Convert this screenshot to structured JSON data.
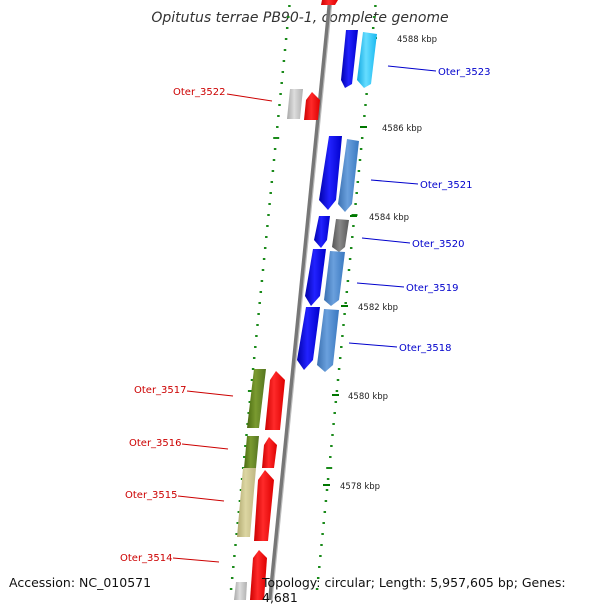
{
  "title": "Opitutus terrae PB90-1, complete genome",
  "footer": {
    "accession": "Accession: NC_010571",
    "topology": "Topology: circular; Length: 5,957,605 bp; Genes: 4,681"
  },
  "kbp_labels": [
    "4588 kbp",
    "4586 kbp",
    "4584 kbp",
    "4582 kbp",
    "4580 kbp",
    "4578 kbp"
  ],
  "genes": [
    {
      "name": "Oter_3523",
      "strand": "right",
      "color": "#0000cc"
    },
    {
      "name": "Oter_3522",
      "strand": "left",
      "color": "#cc0000"
    },
    {
      "name": "Oter_3521",
      "strand": "right",
      "color": "#0000cc"
    },
    {
      "name": "Oter_3520",
      "strand": "right",
      "color": "#0000cc"
    },
    {
      "name": "Oter_3519",
      "strand": "right",
      "color": "#0000cc"
    },
    {
      "name": "Oter_3518",
      "strand": "right",
      "color": "#0000cc"
    },
    {
      "name": "Oter_3517",
      "strand": "left",
      "color": "#cc0000"
    },
    {
      "name": "Oter_3516",
      "strand": "left",
      "color": "#cc0000"
    },
    {
      "name": "Oter_3515",
      "strand": "left",
      "color": "#cc0000"
    },
    {
      "name": "Oter_3514",
      "strand": "left",
      "color": "#cc0000"
    }
  ],
  "colors": {
    "backbone": "#888888",
    "ticks": "#008800",
    "forward_cds": "#0000ee",
    "reverse_cds": "#ff0000",
    "cog_lightblue": "#4a86c8",
    "cog_cyan": "#22c8ff",
    "cog_olive": "#5a7a1a",
    "cog_khaki": "#c8c088",
    "cog_gray": "#bdbdbd",
    "cog_darkgray": "#666666"
  }
}
